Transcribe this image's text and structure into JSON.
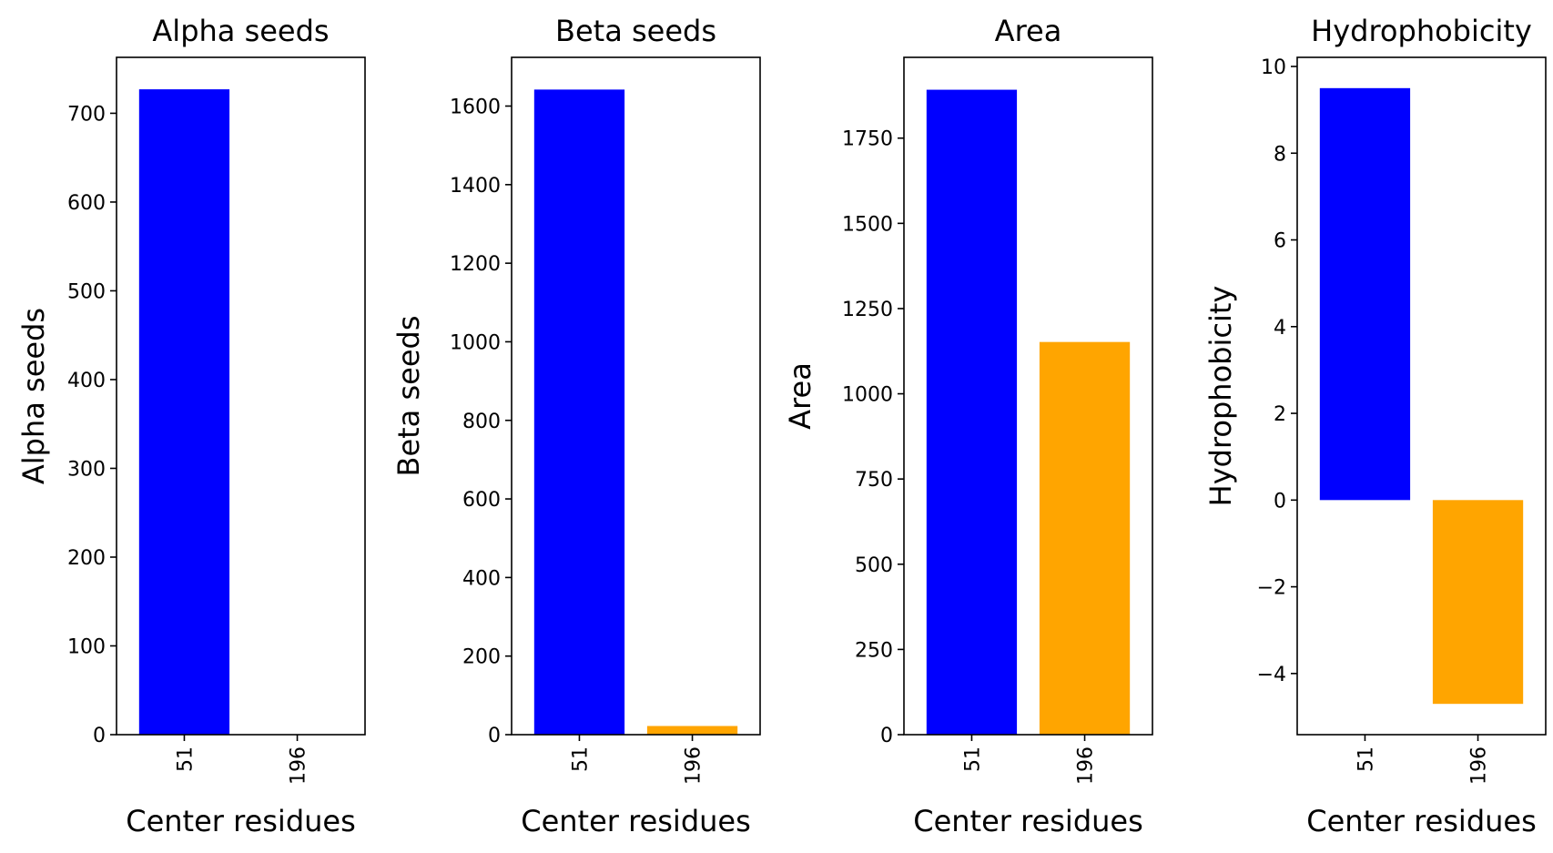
{
  "chart_data": [
    {
      "type": "bar",
      "title": "Alpha seeds",
      "xlabel": "Center residues",
      "ylabel": "Alpha seeds",
      "categories": [
        "51",
        "196"
      ],
      "values": [
        727,
        0
      ],
      "colors": [
        "#0000ff",
        "#ffa500"
      ],
      "ylim": [
        0,
        763
      ],
      "yticks": [
        0,
        100,
        200,
        300,
        400,
        500,
        600,
        700
      ],
      "ytick_labels": [
        "0",
        "100",
        "200",
        "300",
        "400",
        "500",
        "600",
        "700"
      ],
      "grid": false,
      "legend": "none"
    },
    {
      "type": "bar",
      "title": "Beta seeds",
      "xlabel": "Center residues",
      "ylabel": "Beta seeds",
      "categories": [
        "51",
        "196"
      ],
      "values": [
        1642,
        22
      ],
      "colors": [
        "#0000ff",
        "#ffa500"
      ],
      "ylim": [
        0,
        1724
      ],
      "yticks": [
        0,
        200,
        400,
        600,
        800,
        1000,
        1200,
        1400,
        1600
      ],
      "ytick_labels": [
        "0",
        "200",
        "400",
        "600",
        "800",
        "1000",
        "1200",
        "1400",
        "1600"
      ],
      "grid": false,
      "legend": "none"
    },
    {
      "type": "bar",
      "title": "Area",
      "xlabel": "Center residues",
      "ylabel": "Area",
      "categories": [
        "51",
        "196"
      ],
      "values": [
        1892,
        1152
      ],
      "colors": [
        "#0000ff",
        "#ffa500"
      ],
      "ylim": [
        0,
        1987
      ],
      "yticks": [
        0,
        250,
        500,
        750,
        1000,
        1250,
        1500,
        1750
      ],
      "ytick_labels": [
        "0",
        "250",
        "500",
        "750",
        "1000",
        "1250",
        "1500",
        "1750"
      ],
      "grid": false,
      "legend": "none"
    },
    {
      "type": "bar",
      "title": "Hydrophobicity",
      "xlabel": "Center residues",
      "ylabel": "Hydrophobicity",
      "categories": [
        "51",
        "196"
      ],
      "values": [
        9.5,
        -4.7
      ],
      "colors": [
        "#0000ff",
        "#ffa500"
      ],
      "ylim": [
        -5.41,
        10.21
      ],
      "yticks": [
        -4,
        -2,
        0,
        2,
        4,
        6,
        8,
        10
      ],
      "ytick_labels": [
        "−4",
        "−2",
        "0",
        "2",
        "4",
        "6",
        "8",
        "10"
      ],
      "grid": false,
      "legend": "none"
    }
  ]
}
